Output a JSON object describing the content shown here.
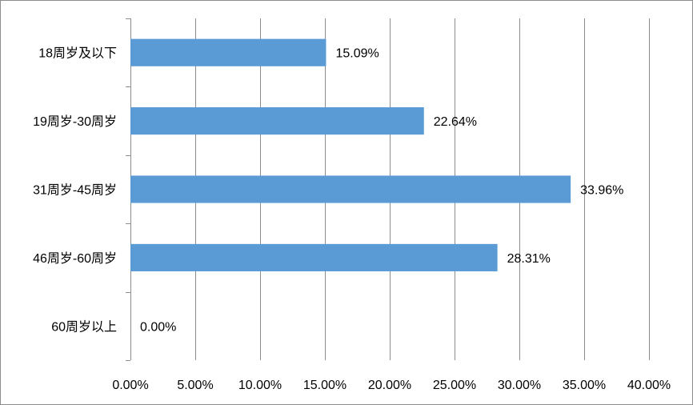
{
  "chart_data": {
    "type": "bar",
    "orientation": "horizontal",
    "categories": [
      "18周岁及以下",
      "19周岁-30周岁",
      "31周岁-45周岁",
      "46周岁-60周岁",
      "60周岁以上"
    ],
    "values": [
      15.09,
      22.64,
      33.96,
      28.31,
      0.0
    ],
    "data_labels": [
      "15.09%",
      "22.64%",
      "33.96%",
      "28.31%",
      "0.00%"
    ],
    "x_ticks": [
      "0.00%",
      "5.00%",
      "10.00%",
      "15.00%",
      "20.00%",
      "25.00%",
      "30.00%",
      "35.00%",
      "40.00%"
    ],
    "xlim": [
      0,
      40
    ],
    "grid": "vertical",
    "legend": "none",
    "bar_color": "#5b9bd5",
    "grid_color": "#8c8c8c"
  }
}
